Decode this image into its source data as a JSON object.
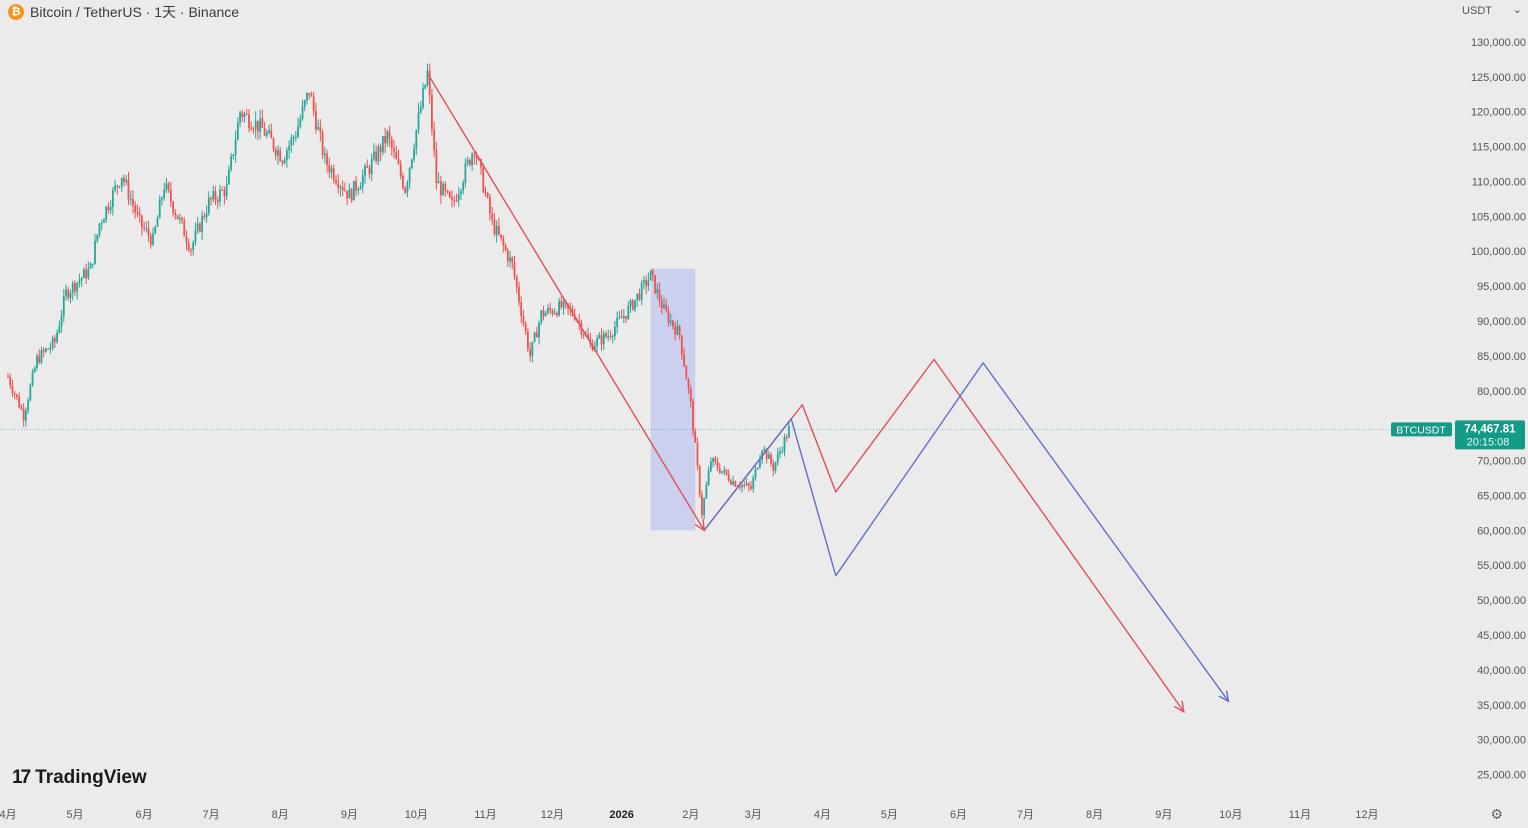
{
  "header": {
    "symbol_title": "Bitcoin / TetherUS · 1天 · Binance",
    "currency": "USDT",
    "currency_caret": "⌄"
  },
  "branding": {
    "logo_text": "TradingView",
    "logo_mark": "17"
  },
  "icons": {
    "coin": "bitcoin-coin-icon",
    "settings": "gear-icon"
  },
  "colors": {
    "up": "#26a69a",
    "down": "#ef5350",
    "red_path": "#e0505a",
    "blue_path": "#6470c8",
    "highlight": "#c8cdee",
    "price_tag": "#149b87"
  },
  "chart_data": {
    "type": "candlestick",
    "symbol": "BTCUSDT",
    "interval": "1天",
    "ylim": [
      22500,
      134000
    ],
    "y_ticks": [
      130000,
      125000,
      120000,
      115000,
      110000,
      105000,
      100000,
      95000,
      90000,
      85000,
      80000,
      75000,
      70000,
      65000,
      60000,
      55000,
      50000,
      45000,
      40000,
      35000,
      30000,
      25000
    ],
    "y_tick_labels": [
      "130,000.00",
      "125,000.00",
      "120,000.00",
      "115,000.00",
      "110,000.00",
      "105,000.00",
      "100,000.00",
      "95,000.00",
      "90,000.00",
      "85,000.00",
      "80,000.00",
      "",
      "70,000.00",
      "65,000.00",
      "60,000.00",
      "55,000.00",
      "50,000.00",
      "45,000.00",
      "40,000.00",
      "35,000.00",
      "30,000.00",
      "25,000.00"
    ],
    "x_range": [
      "2025-04-01",
      "2027-01-01"
    ],
    "x_ticks": [
      {
        "date": "2025-04-01",
        "label": "4月"
      },
      {
        "date": "2025-05-01",
        "label": "5月"
      },
      {
        "date": "2025-06-01",
        "label": "6月"
      },
      {
        "date": "2025-07-01",
        "label": "7月"
      },
      {
        "date": "2025-08-01",
        "label": "8月"
      },
      {
        "date": "2025-09-01",
        "label": "9月"
      },
      {
        "date": "2025-10-01",
        "label": "10月"
      },
      {
        "date": "2025-11-01",
        "label": "11月"
      },
      {
        "date": "2025-12-01",
        "label": "12月"
      },
      {
        "date": "2026-01-01",
        "label": "2026"
      },
      {
        "date": "2026-02-01",
        "label": "2月"
      },
      {
        "date": "2026-03-01",
        "label": "3月"
      },
      {
        "date": "2026-04-01",
        "label": "4月"
      },
      {
        "date": "2026-05-01",
        "label": "5月"
      },
      {
        "date": "2026-06-01",
        "label": "6月"
      },
      {
        "date": "2026-07-01",
        "label": "7月"
      },
      {
        "date": "2026-08-01",
        "label": "8月"
      },
      {
        "date": "2026-09-01",
        "label": "9月"
      },
      {
        "date": "2026-10-01",
        "label": "10月"
      },
      {
        "date": "2026-11-01",
        "label": "11月"
      },
      {
        "date": "2026-12-01",
        "label": "12月"
      }
    ],
    "price_path": [
      [
        "2025-04-01",
        82000
      ],
      [
        "2025-04-08",
        76500
      ],
      [
        "2025-04-14",
        84500
      ],
      [
        "2025-04-22",
        87000
      ],
      [
        "2025-04-27",
        94000
      ],
      [
        "2025-05-08",
        97500
      ],
      [
        "2025-05-12",
        104000
      ],
      [
        "2025-05-22",
        111000
      ],
      [
        "2025-05-30",
        104000
      ],
      [
        "2025-06-05",
        101500
      ],
      [
        "2025-06-10",
        109500
      ],
      [
        "2025-06-22",
        100500
      ],
      [
        "2025-06-30",
        107000
      ],
      [
        "2025-07-08",
        109000
      ],
      [
        "2025-07-14",
        120000
      ],
      [
        "2025-07-24",
        117500
      ],
      [
        "2025-08-02",
        113500
      ],
      [
        "2025-08-08",
        117000
      ],
      [
        "2025-08-14",
        123000
      ],
      [
        "2025-08-21",
        113000
      ],
      [
        "2025-09-01",
        108000
      ],
      [
        "2025-09-10",
        112000
      ],
      [
        "2025-09-18",
        116500
      ],
      [
        "2025-09-26",
        109000
      ],
      [
        "2025-10-02",
        119000
      ],
      [
        "2025-10-06",
        125500
      ],
      [
        "2025-10-10",
        110000
      ],
      [
        "2025-10-17",
        106500
      ],
      [
        "2025-10-27",
        115000
      ],
      [
        "2025-11-04",
        104000
      ],
      [
        "2025-11-13",
        98000
      ],
      [
        "2025-11-21",
        85000
      ],
      [
        "2025-11-26",
        91000
      ],
      [
        "2025-12-05",
        92000
      ],
      [
        "2025-12-11",
        91000
      ],
      [
        "2025-12-18",
        86500
      ],
      [
        "2025-12-26",
        88000
      ],
      [
        "2026-01-05",
        92000
      ],
      [
        "2026-01-14",
        96500
      ],
      [
        "2026-01-20",
        91500
      ],
      [
        "2026-01-27",
        88000
      ],
      [
        "2026-02-01",
        78000
      ],
      [
        "2026-02-06",
        62500
      ],
      [
        "2026-02-10",
        70000
      ],
      [
        "2026-02-20",
        67000
      ],
      [
        "2026-02-28",
        66000
      ],
      [
        "2026-03-05",
        72000
      ],
      [
        "2026-03-10",
        69000
      ],
      [
        "2026-03-17",
        74467.81
      ]
    ],
    "annotations": {
      "highlight_box": {
        "x0": "2026-01-14",
        "x1": "2026-02-03",
        "y0": 60000,
        "y1": 97500
      },
      "red_path": [
        [
          "2025-10-06",
          125500
        ],
        [
          "2026-02-07",
          60000
        ],
        [
          "2026-03-23",
          78000
        ],
        [
          "2026-04-07",
          65500
        ],
        [
          "2026-05-21",
          84500
        ],
        [
          "2026-09-10",
          34000
        ]
      ],
      "blue_path": [
        [
          "2026-02-07",
          60000
        ],
        [
          "2026-03-18",
          76000
        ],
        [
          "2026-04-07",
          53500
        ],
        [
          "2026-06-12",
          84000
        ],
        [
          "2026-09-30",
          35500
        ]
      ]
    },
    "current_price": {
      "label": "BTCUSDT",
      "price": "74,467.81",
      "countdown": "20:15:08",
      "value": 74467.81
    }
  }
}
